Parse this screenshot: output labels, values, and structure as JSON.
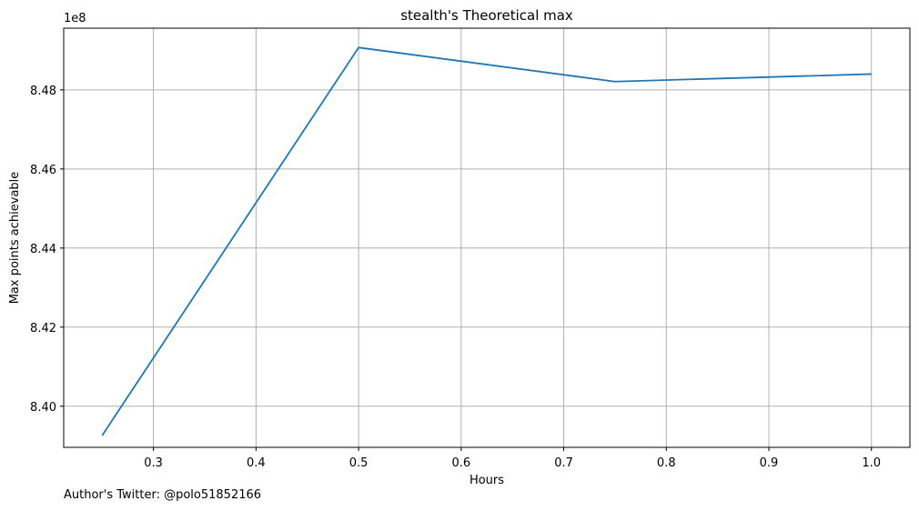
{
  "chart_data": {
    "type": "line",
    "title": "stealth's Theoretical max",
    "xlabel": "Hours",
    "ylabel": "Max points achievable",
    "y_offset_label": "1e8",
    "y_scale": 100000000,
    "xlim": [
      0.2125,
      1.0375
    ],
    "ylim": [
      8.3896,
      8.4956
    ],
    "grid": true,
    "x_ticks": [
      0.3,
      0.4,
      0.5,
      0.6,
      0.7,
      0.8,
      0.9,
      1.0
    ],
    "x_tick_labels": [
      "0.3",
      "0.4",
      "0.5",
      "0.6",
      "0.7",
      "0.8",
      "0.9",
      "1.0"
    ],
    "y_ticks": [
      8.4,
      8.42,
      8.44,
      8.46,
      8.48
    ],
    "y_tick_labels": [
      "8.40",
      "8.42",
      "8.44",
      "8.46",
      "8.48"
    ],
    "series": [
      {
        "name": "Max points achievable",
        "color": "#1f77b4",
        "x": [
          0.25,
          0.5,
          0.75,
          1.0
        ],
        "y": [
          8.3926,
          8.4907,
          8.4821,
          8.484
        ]
      }
    ]
  },
  "footer": {
    "credit": "Author's Twitter: @polo51852166"
  }
}
